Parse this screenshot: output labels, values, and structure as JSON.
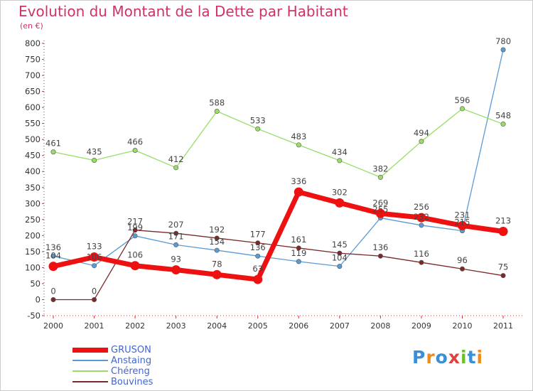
{
  "title": "Evolution du Montant de la Dette par Habitant",
  "unit": "(en €)",
  "brand": {
    "text": "Proxiti",
    "letter_colors": [
      "#3a8fd6",
      "#f08a1e",
      "#3a8fd6",
      "#e04040",
      "#6fbf2a",
      "#3a8fd6",
      "#f08a1e"
    ]
  },
  "chart_data": {
    "type": "line",
    "x": [
      "2000",
      "2001",
      "2002",
      "2003",
      "2004",
      "2005",
      "2006",
      "2007",
      "2008",
      "2009",
      "2010",
      "2011"
    ],
    "ylim": [
      -50,
      800
    ],
    "yticks": [
      "-50",
      "0",
      "50",
      "100",
      "150",
      "200",
      "250",
      "300",
      "350",
      "400",
      "450",
      "500",
      "550",
      "600",
      "650",
      "700",
      "750",
      "800"
    ],
    "grid": false,
    "legend_position": "bottom-left",
    "series": [
      {
        "name": "GRUSON",
        "color": "#ee1111",
        "values": [
          104,
          133,
          106,
          93,
          78,
          63,
          336,
          302,
          269,
          256,
          231,
          213
        ],
        "labels": [
          "104",
          "133",
          "106",
          "93",
          "78",
          "63",
          "336",
          "302",
          "269",
          "256",
          "231",
          "213"
        ],
        "emphasis": true
      },
      {
        "name": "Anstaing",
        "color": "#5b9bd5",
        "values": [
          136,
          106,
          199,
          171,
          154,
          136,
          119,
          104,
          255,
          232,
          215,
          780
        ],
        "labels": [
          "136",
          "106",
          "199",
          "171",
          "154",
          "136",
          "119",
          "104",
          "255",
          "232",
          "215",
          "780"
        ]
      },
      {
        "name": "Chéreng",
        "color": "#99dd66",
        "values": [
          461,
          435,
          466,
          412,
          588,
          533,
          483,
          434,
          382,
          494,
          596,
          548
        ],
        "labels": [
          "461",
          "435",
          "466",
          "412",
          "588",
          "533",
          "483",
          "434",
          "382",
          "494",
          "596",
          "548"
        ]
      },
      {
        "name": "Bouvines",
        "color": "#7a2a2a",
        "values": [
          0,
          0,
          217,
          207,
          192,
          177,
          161,
          145,
          136,
          116,
          96,
          75
        ],
        "labels": [
          "0",
          "0",
          "217",
          "207",
          "192",
          "177",
          "161",
          "145",
          "136",
          "116",
          "96",
          "75"
        ]
      }
    ]
  }
}
